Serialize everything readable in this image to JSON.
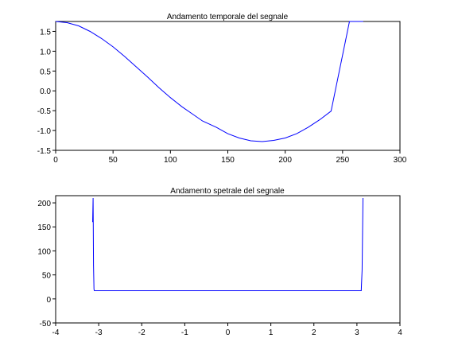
{
  "chart_data": [
    {
      "type": "line",
      "title": "Andamento temporale del segnale",
      "xlabel": "",
      "ylabel": "",
      "xlim": [
        0,
        300
      ],
      "ylim": [
        -1.5,
        1.75
      ],
      "xticks": [
        0,
        50,
        100,
        150,
        200,
        250,
        300
      ],
      "yticks": [
        -1.5,
        -1.0,
        -0.5,
        0.0,
        0.5,
        1.0,
        1.5
      ],
      "ytick_labels": [
        "-1.5",
        "-1.0",
        "-0.5",
        "0.0",
        "0.5",
        "1.0",
        "1.5"
      ],
      "grid": false,
      "line_color": "#0000ff",
      "series": [
        {
          "x": [
            0,
            10,
            20,
            30,
            40,
            50,
            60,
            70,
            80,
            90,
            100,
            110,
            120,
            128,
            140,
            150,
            160,
            170,
            180,
            190,
            200,
            210,
            220,
            230,
            240,
            256,
            268
          ],
          "values": [
            1.75,
            1.72,
            1.64,
            1.5,
            1.32,
            1.11,
            0.87,
            0.61,
            0.35,
            0.08,
            -0.17,
            -0.4,
            -0.6,
            -0.76,
            -0.92,
            -1.08,
            -1.19,
            -1.26,
            -1.28,
            -1.25,
            -1.19,
            -1.08,
            -0.92,
            -0.73,
            -0.51,
            1.75,
            1.75
          ]
        }
      ]
    },
    {
      "type": "line",
      "title": "Andamento spetrale del segnale",
      "xlabel": "",
      "ylabel": "",
      "xlim": [
        -4,
        4
      ],
      "ylim": [
        -50,
        215
      ],
      "xticks": [
        -4,
        -3,
        -2,
        -1,
        0,
        1,
        2,
        3,
        4
      ],
      "yticks": [
        -50,
        0,
        50,
        100,
        150,
        200
      ],
      "ytick_labels": [
        "-50",
        "0",
        "50",
        "100",
        "150",
        "200"
      ],
      "grid": false,
      "line_color": "#0000ff",
      "series": [
        {
          "x": [
            -3.14,
            -3.13,
            -3.12,
            -3.11,
            -3.1,
            -3.09,
            3.09,
            3.1,
            3.12,
            3.14
          ],
          "values": [
            160,
            210,
            70,
            20,
            17,
            17,
            17,
            17,
            60,
            210
          ]
        }
      ]
    }
  ]
}
